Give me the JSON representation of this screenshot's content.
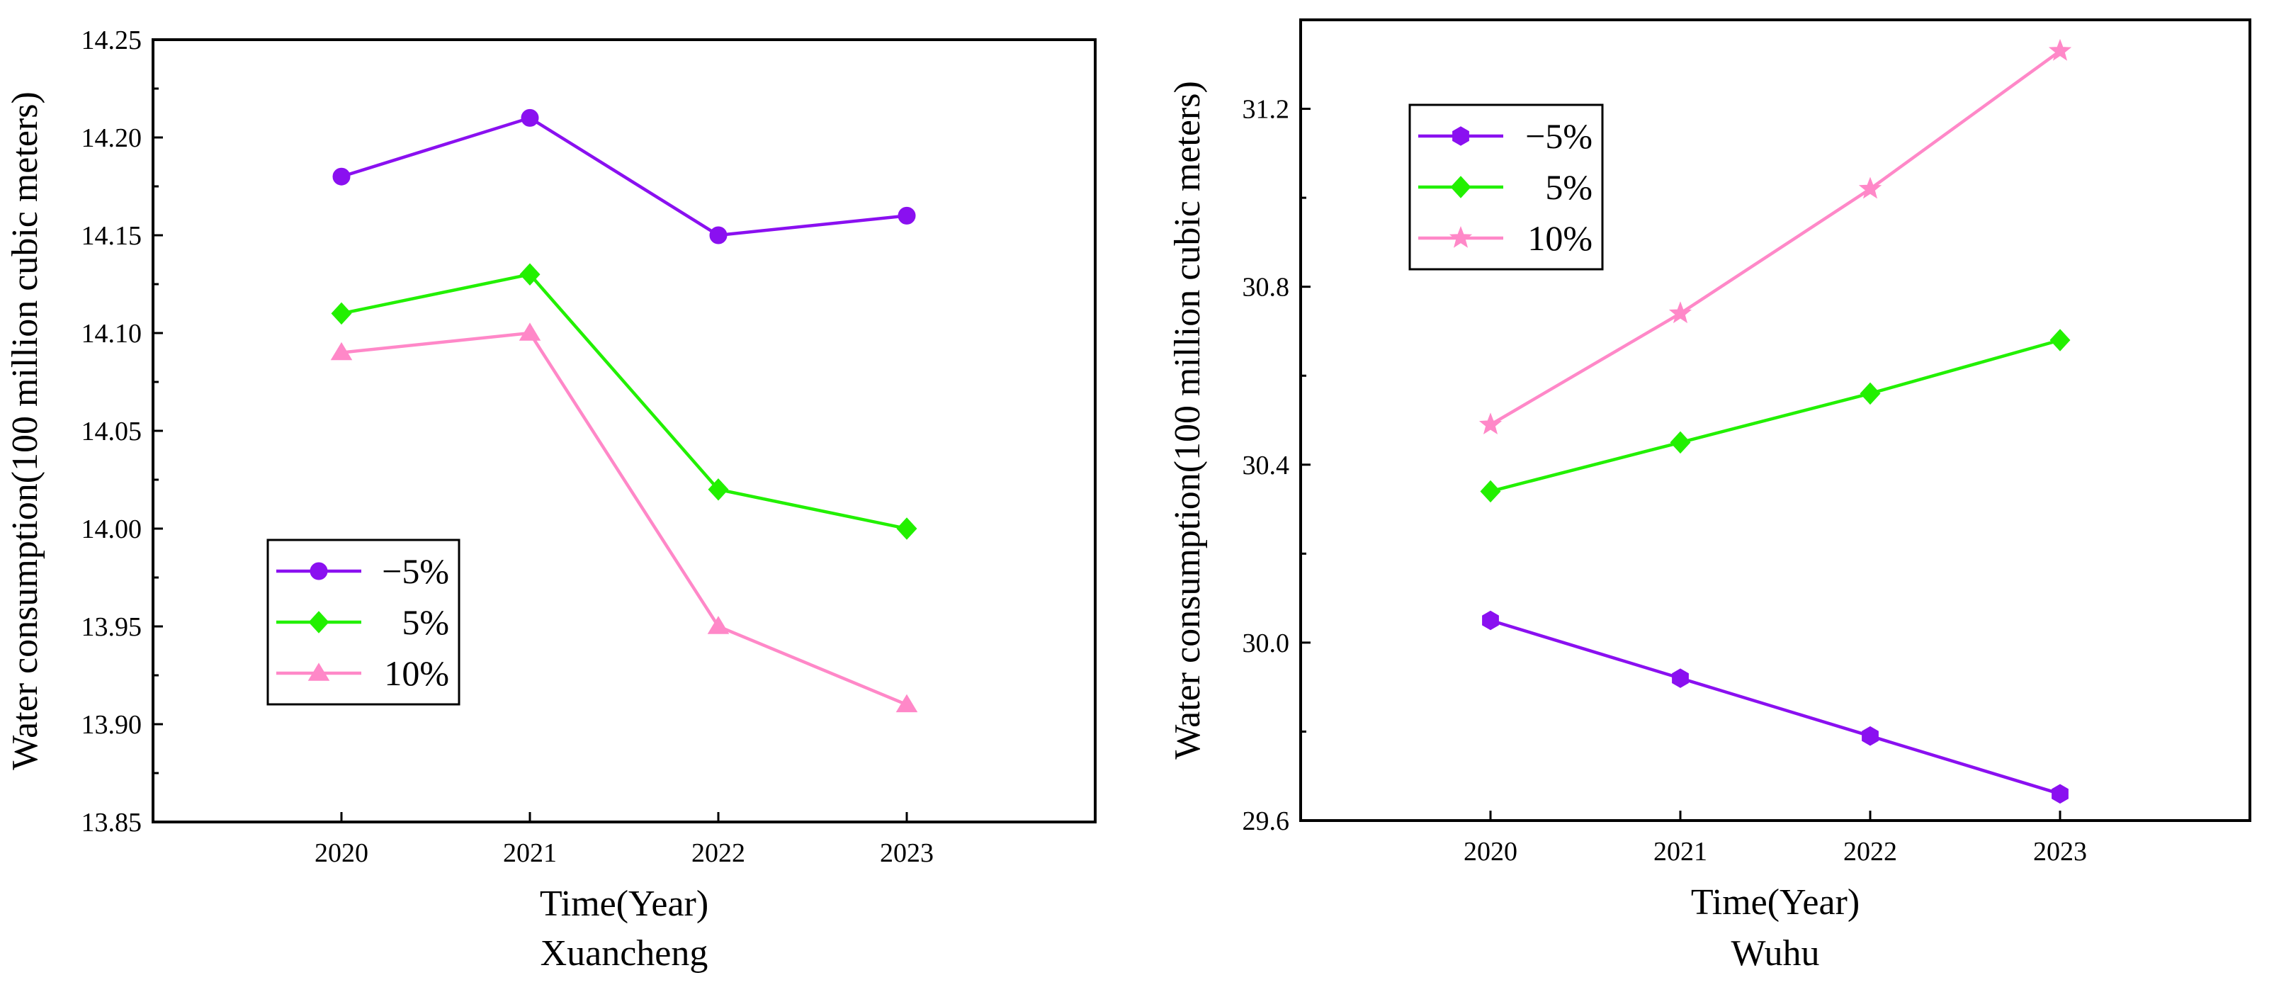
{
  "charts": [
    {
      "name": "xuancheng",
      "caption": "Xuancheng",
      "chart_data": {
        "type": "line",
        "title": "",
        "xlabel": "Time(Year)",
        "ylabel": "Water consumption(100 million cubic meters)",
        "categories": [
          "2020",
          "2021",
          "2022",
          "2023"
        ],
        "ylim": [
          13.85,
          14.25
        ],
        "yticks": [
          13.85,
          13.9,
          13.95,
          14.0,
          14.05,
          14.1,
          14.15,
          14.2,
          14.25
        ],
        "ytick_labels": [
          "13.85",
          "13.90",
          "13.95",
          "14.00",
          "14.05",
          "14.10",
          "14.15",
          "14.20",
          "14.25"
        ],
        "grid": false,
        "legend_position": "lower-left",
        "series": [
          {
            "name": "−5%",
            "values": [
              14.18,
              14.21,
              14.15,
              14.16
            ],
            "color": "#8a10f0",
            "marker": "circle"
          },
          {
            "name": "5%",
            "values": [
              14.11,
              14.13,
              14.02,
              14.0
            ],
            "color": "#22f000",
            "marker": "diamond"
          },
          {
            "name": "10%",
            "values": [
              14.09,
              14.1,
              13.95,
              13.91
            ],
            "color": "#ff88c8",
            "marker": "triangle"
          }
        ]
      }
    },
    {
      "name": "wuhu",
      "caption": "Wuhu",
      "chart_data": {
        "type": "line",
        "title": "",
        "xlabel": "Time(Year)",
        "ylabel": "Water consumption(100 million cubic meters)",
        "categories": [
          "2020",
          "2021",
          "2022",
          "2023"
        ],
        "ylim": [
          29.6,
          31.4
        ],
        "yticks": [
          29.6,
          30.0,
          30.4,
          30.8,
          31.2
        ],
        "ytick_labels": [
          "29.6",
          "30.0",
          "30.4",
          "30.8",
          "31.2"
        ],
        "grid": false,
        "legend_position": "upper-left",
        "series": [
          {
            "name": "−5%",
            "values": [
              30.05,
              29.92,
              29.79,
              29.66
            ],
            "color": "#8a10f0",
            "marker": "hexagon"
          },
          {
            "name": "5%",
            "values": [
              30.34,
              30.45,
              30.56,
              30.68
            ],
            "color": "#22f000",
            "marker": "diamond"
          },
          {
            "name": "10%",
            "values": [
              30.49,
              30.74,
              31.02,
              31.33
            ],
            "color": "#ff88c8",
            "marker": "star"
          }
        ]
      }
    }
  ]
}
